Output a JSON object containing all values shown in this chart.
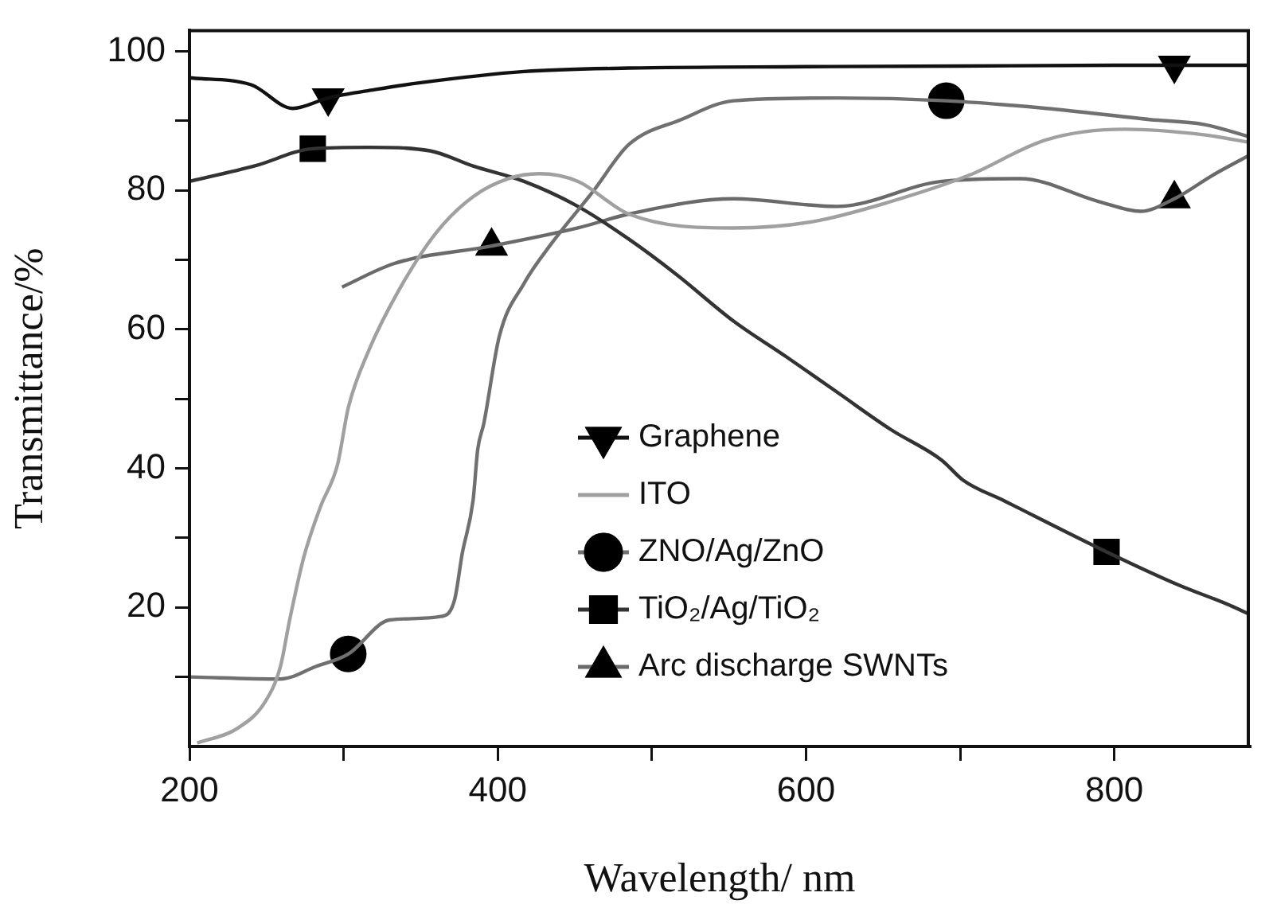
{
  "chart_data": {
    "type": "line",
    "xlabel": "Wavelength/ nm",
    "ylabel": "Transmittance/%",
    "xlim": [
      200,
      888
    ],
    "ylim": [
      0,
      103
    ],
    "xticks": [
      200,
      {
        "value": 300,
        "label": null
      },
      400,
      {
        "value": 500,
        "label": null
      },
      600,
      {
        "value": 700,
        "label": null
      },
      800
    ],
    "yticks": [
      {
        "value": 10,
        "label": null
      },
      20,
      {
        "value": 30,
        "label": null
      },
      40,
      {
        "value": 50,
        "label": null
      },
      60,
      {
        "value": 70,
        "label": null
      },
      80,
      {
        "value": 90,
        "label": null
      },
      100
    ],
    "grid": false,
    "legend": "bottom right",
    "series": [
      {
        "name": "Graphene",
        "color": "#111111",
        "x": [
          200,
          240,
          267,
          290,
          320,
          350,
          417,
          485,
          600,
          700,
          800,
          888
        ],
        "values": [
          96.2,
          95.2,
          91.8,
          93.3,
          94.5,
          95.5,
          97.1,
          97.6,
          97.8,
          97.9,
          98,
          98
        ]
      },
      {
        "type": "scatter",
        "marker": "triangle-down",
        "color": "#000000",
        "x": [
          290,
          839
        ],
        "values": [
          93.3,
          98
        ]
      },
      {
        "name": "ITO",
        "color": "#a0a0a0",
        "x": [
          205,
          231,
          249,
          259,
          265,
          274,
          285,
          296,
          303,
          316,
          336,
          360,
          384,
          407,
          427,
          452,
          485,
          553,
          604,
          655,
          706,
          756,
          807,
          858,
          888
        ],
        "values": [
          0.5,
          2.6,
          6.4,
          11.5,
          18.2,
          27.1,
          34.5,
          40.5,
          48.7,
          56.8,
          65.7,
          73.9,
          79.1,
          81.7,
          82.4,
          81.3,
          76.6,
          74.6,
          75.5,
          78.4,
          82.2,
          87.3,
          88.8,
          88,
          86.9
        ]
      },
      {
        "name": "ZNO/Ag/ZnO",
        "color": "#707070",
        "x": [
          200,
          259,
          282,
          303,
          330,
          363,
          372,
          377,
          384,
          387,
          391,
          401,
          417,
          435,
          462,
          485,
          519,
          553,
          620,
          691,
          756,
          823,
          858,
          888
        ],
        "values": [
          10,
          9.7,
          11.5,
          13.3,
          18.2,
          18.7,
          21.1,
          27.8,
          35.4,
          42.7,
          46.5,
          59,
          66.6,
          72.4,
          79.9,
          86.6,
          90.2,
          92.9,
          93.3,
          92.9,
          91.8,
          90.2,
          89.5,
          87.7
        ]
      },
      {
        "type": "scatter",
        "marker": "circle",
        "color": "#000000",
        "x": [
          303,
          691
        ],
        "values": [
          13.3,
          92.9
        ]
      },
      {
        "name": "TiO₂/Ag/TiO₂",
        "color": "#333333",
        "x": [
          200,
          242,
          280,
          316,
          356,
          384,
          417,
          452,
          485,
          516,
          553,
          587,
          620,
          655,
          688,
          702,
          729,
          795,
          841,
          874,
          888
        ],
        "values": [
          81.3,
          83.5,
          86,
          86.2,
          85.7,
          83.5,
          81.3,
          77.7,
          73,
          67.9,
          61.2,
          56.1,
          51,
          45.6,
          41.2,
          38.3,
          35.3,
          28,
          23.3,
          20.4,
          19
        ]
      },
      {
        "type": "scatter",
        "marker": "square",
        "color": "#000000",
        "x": [
          280,
          795
        ],
        "values": [
          86,
          28
        ]
      },
      {
        "name": "Arc discharge SWNTs",
        "color": "#6a6a6a",
        "x": [
          299,
          333,
          396,
          452,
          485,
          553,
          620,
          688,
          739,
          790,
          817,
          839,
          864,
          888
        ],
        "values": [
          66.1,
          69.5,
          72,
          74.6,
          76.6,
          78.8,
          77.7,
          81.3,
          81.7,
          78.4,
          77,
          78.8,
          82.2,
          85.1
        ]
      },
      {
        "type": "scatter",
        "marker": "triangle",
        "color": "#000000",
        "x": [
          396,
          839
        ],
        "values": [
          72,
          78.8
        ]
      }
    ]
  }
}
